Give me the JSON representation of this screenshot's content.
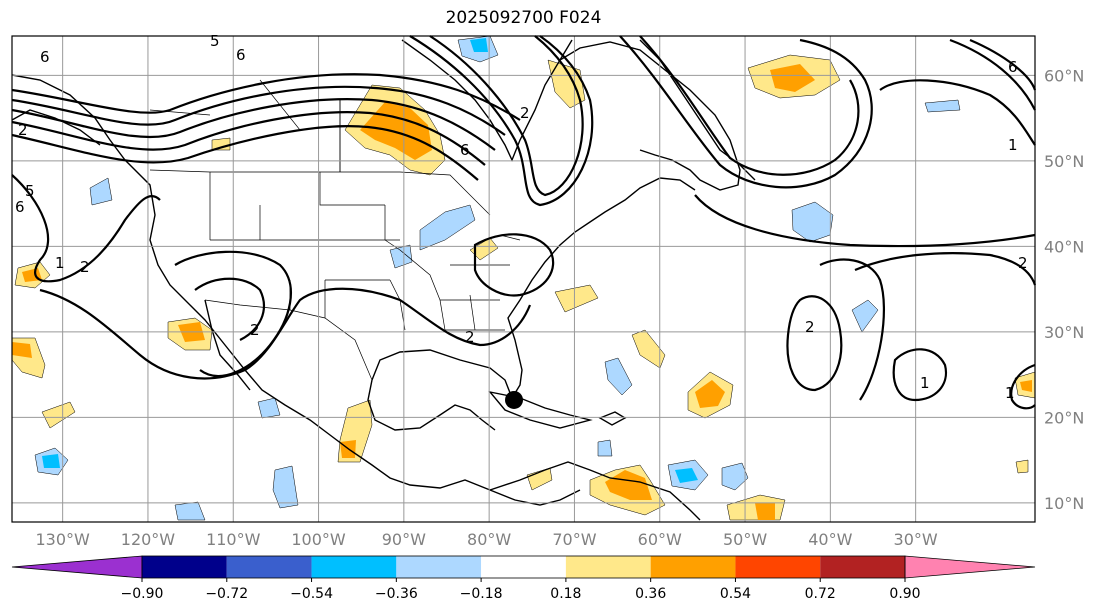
{
  "title": "2025092700 F024",
  "lat_labels": [
    {
      "text": "60°N",
      "lat": 60
    },
    {
      "text": "50°N",
      "lat": 50
    },
    {
      "text": "40°N",
      "lat": 40
    },
    {
      "text": "30°N",
      "lat": 30
    },
    {
      "text": "20°N",
      "lat": 20
    },
    {
      "text": "10°N",
      "lat": 10
    }
  ],
  "lon_labels": [
    {
      "text": "130°W",
      "lon": -130
    },
    {
      "text": "120°W",
      "lon": -120
    },
    {
      "text": "110°W",
      "lon": -110
    },
    {
      "text": "100°W",
      "lon": -100
    },
    {
      "text": "90°W",
      "lon": -90
    },
    {
      "text": "80°W",
      "lon": -80
    },
    {
      "text": "70°W",
      "lon": -70
    },
    {
      "text": "60°W",
      "lon": -60
    },
    {
      "text": "50°W",
      "lon": -50
    },
    {
      "text": "40°W",
      "lon": -40
    },
    {
      "text": "30°W",
      "lon": -30
    }
  ],
  "colorbar": {
    "colors": [
      "#9b30d0",
      "#00008b",
      "#3a5fcd",
      "#00bfff",
      "#add8ff",
      "#ffffff",
      "#ffe88a",
      "#ffa000",
      "#ff4500",
      "#b22222",
      "#ff82b0"
    ],
    "labels": [
      "−0.90",
      "−0.72",
      "−0.54",
      "−0.36",
      "−0.18",
      "0.18",
      "0.36",
      "0.54",
      "0.72",
      "0.90"
    ]
  },
  "contour_labels": [
    "6",
    "5",
    "6",
    "6",
    "2",
    "1",
    "6",
    "5",
    "2",
    "1",
    "2",
    "2",
    "2",
    "2",
    "1",
    "2",
    "6",
    "1"
  ],
  "storm_marker": {
    "lat": 22.5,
    "lon": -76.5
  }
}
